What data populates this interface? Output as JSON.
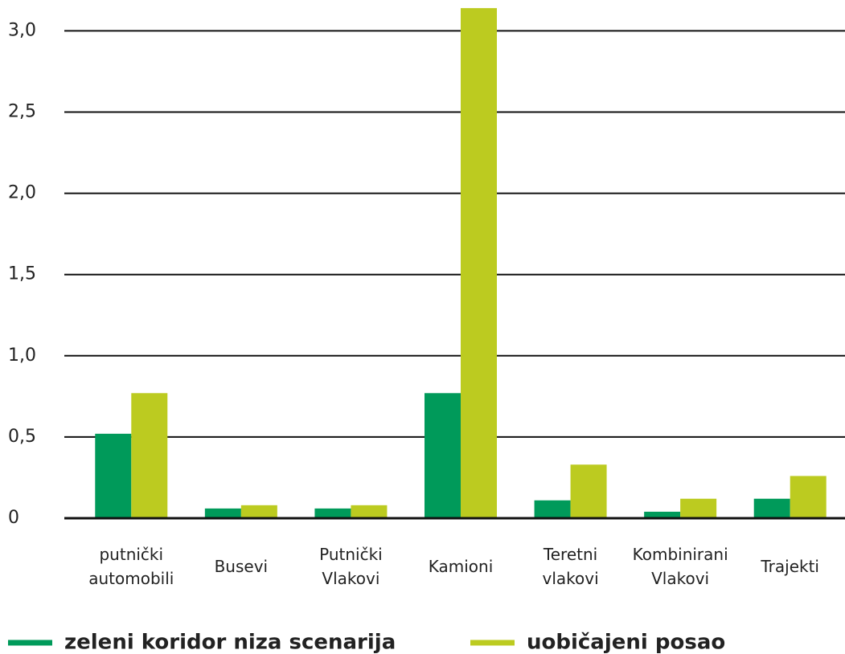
{
  "chart_data": {
    "type": "bar",
    "categories": [
      "putnički\nautomobili",
      "Busevi",
      "Putnički\nVlakovi",
      "Kamioni",
      "Teretni\nvlakovi",
      "Kombinirani\nVlakovi",
      "Trajekti"
    ],
    "series": [
      {
        "name": "zeleni koridor niza scenarija",
        "color": "#009a5a",
        "values": [
          0.52,
          0.06,
          0.06,
          0.77,
          0.11,
          0.04,
          0.12
        ]
      },
      {
        "name": "uobičajeni posao",
        "color": "#bccb20",
        "values": [
          0.77,
          0.08,
          0.08,
          3.14,
          0.33,
          0.12,
          0.26
        ]
      }
    ],
    "ylim": [
      0,
      3.19
    ],
    "yticks": [
      0,
      {
        "value": 0.5,
        "label": "0,5"
      },
      {
        "value": 1.0,
        "label": "1,0"
      },
      {
        "value": 1.5,
        "label": "1,5"
      },
      {
        "value": 2.0,
        "label": "2,0"
      },
      {
        "value": 2.5,
        "label": "2,5"
      },
      {
        "value": 3.0,
        "label": "3,0"
      }
    ],
    "grid": true
  }
}
